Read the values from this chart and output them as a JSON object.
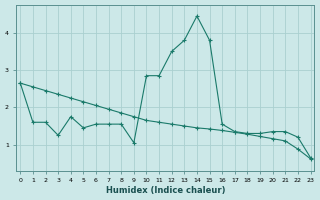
{
  "xlabel": "Humidex (Indice chaleur)",
  "bg_color": "#cce8e8",
  "grid_color": "#aad0d0",
  "line_color": "#1a7a6a",
  "line1_x": [
    0,
    1,
    2,
    3,
    4,
    5,
    6,
    7,
    8,
    9,
    10,
    11,
    12,
    13,
    14,
    15,
    16,
    17,
    18,
    19,
    20,
    21,
    22,
    23
  ],
  "line1_y": [
    2.65,
    2.55,
    2.45,
    2.35,
    2.25,
    2.15,
    2.05,
    1.95,
    1.85,
    1.75,
    1.65,
    1.6,
    1.55,
    1.5,
    1.45,
    1.42,
    1.38,
    1.33,
    1.28,
    1.22,
    1.16,
    1.1,
    0.88,
    0.62
  ],
  "line2_x": [
    0,
    1,
    2,
    3,
    4,
    5,
    6,
    7,
    8,
    9,
    10,
    11,
    12,
    13,
    14,
    15,
    16,
    17,
    18,
    19,
    20,
    21,
    22,
    23
  ],
  "line2_y": [
    2.65,
    1.6,
    1.6,
    1.25,
    1.75,
    1.45,
    1.55,
    1.55,
    1.55,
    1.05,
    2.85,
    2.85,
    3.5,
    3.8,
    4.45,
    3.8,
    1.55,
    1.35,
    1.3,
    1.3,
    1.35,
    1.35,
    1.2,
    0.65
  ],
  "yticks": [
    1,
    2,
    3,
    4
  ],
  "xtick_labels": [
    "0",
    "1",
    "2",
    "3",
    "4",
    "5",
    "6",
    "7",
    "8",
    "9",
    "10",
    "11",
    "12",
    "13",
    "14",
    "15",
    "16",
    "17",
    "18",
    "19",
    "20",
    "21",
    "22",
    "23"
  ],
  "xticks": [
    0,
    1,
    2,
    3,
    4,
    5,
    6,
    7,
    8,
    9,
    10,
    11,
    12,
    13,
    14,
    15,
    16,
    17,
    18,
    19,
    20,
    21,
    22,
    23
  ],
  "ylim": [
    0.3,
    4.75
  ],
  "xlim": [
    -0.3,
    23.3
  ]
}
